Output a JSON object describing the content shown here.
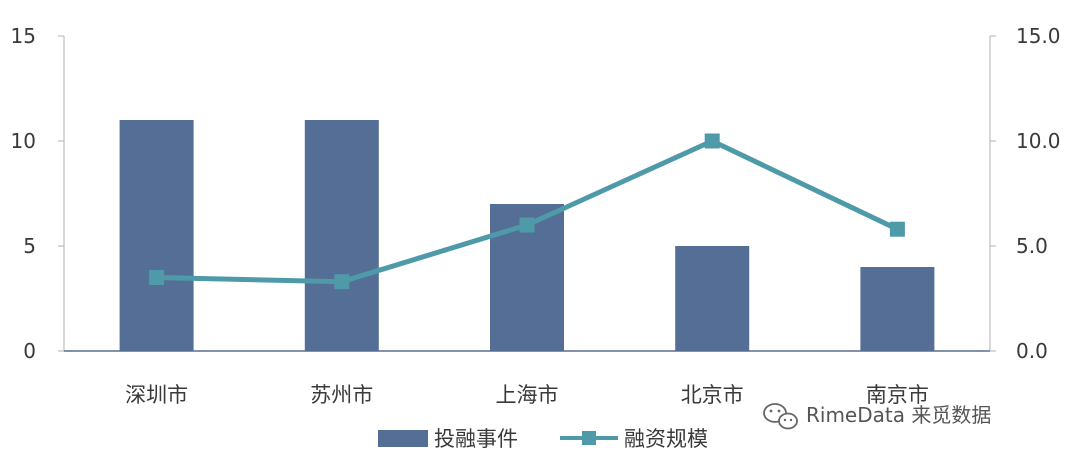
{
  "chart_data": {
    "type": "bar+line",
    "categories": [
      "深圳市",
      "苏州市",
      "上海市",
      "北京市",
      "南京市"
    ],
    "series": [
      {
        "name": "投融事件",
        "type": "bar",
        "axis": "left",
        "values": [
          11,
          11,
          7,
          5,
          4
        ],
        "color": "#546e96"
      },
      {
        "name": "融资规模",
        "type": "line",
        "axis": "right",
        "values": [
          3.5,
          3.3,
          6.0,
          10.0,
          5.8
        ],
        "color": "#4f9aa8"
      }
    ],
    "left_axis": {
      "min": 0,
      "max": 15,
      "ticks": [
        0,
        5,
        10,
        15
      ],
      "tick_labels": [
        "0",
        "5",
        "10",
        "15"
      ]
    },
    "right_axis": {
      "min": 0,
      "max": 15,
      "ticks": [
        0,
        5,
        10,
        15
      ],
      "tick_labels": [
        "0.0",
        "5.0",
        "10.0",
        "15.0"
      ]
    },
    "grid": false,
    "legend_position": "bottom"
  },
  "watermark": {
    "text": "RimeData 来觅数据",
    "icon": "wechat-icon"
  }
}
